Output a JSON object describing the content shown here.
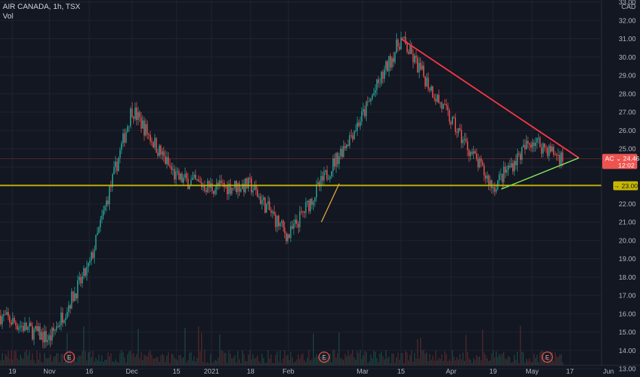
{
  "header": {
    "symbol_line": "AIR CANADA, 1h, TSX",
    "volume_label": "Vol"
  },
  "price_axis": {
    "currency": "CAD",
    "labels": [
      "33.00",
      "32.00",
      "31.00",
      "30.00",
      "29.00",
      "28.00",
      "27.00",
      "26.00",
      "25.00",
      "22.00",
      "21.00",
      "20.00",
      "19.00",
      "18.00",
      "17.00",
      "16.00",
      "15.00",
      "14.00",
      "13.00"
    ]
  },
  "time_axis": {
    "labels": [
      "19",
      "Nov",
      "16",
      "Dec",
      "15",
      "2021",
      "18",
      "Feb",
      "Mar",
      "15",
      "Apr",
      "19",
      "May",
      "17",
      "Jun"
    ]
  },
  "last_price_tag": {
    "symbol": "AC",
    "price": "24.46",
    "countdown": "12:02",
    "color": "#ef5350"
  },
  "level_tag": {
    "value": "23.00",
    "color": "#c7b800"
  },
  "earnings_markers": [
    "E",
    "E",
    "E"
  ],
  "colors": {
    "background": "#131722",
    "up_candle": "#26a69a",
    "down_candle": "#ef5350",
    "resistance_line": "#f23645",
    "support_line": "#7ee05a",
    "breakout_line": "#e0a83a",
    "horizontal_level": "#c7b800",
    "grid": "#1f2430"
  },
  "chart_data": {
    "type": "candlestick",
    "title": "AIR CANADA, 1h, TSX",
    "ylabel": "CAD",
    "ylim": [
      13,
      33
    ],
    "x": [
      "19",
      "Nov",
      "16",
      "Dec",
      "15",
      "2021",
      "18",
      "Feb",
      "Mar",
      "15",
      "Apr",
      "19",
      "May",
      "17",
      "Jun"
    ],
    "approx_close_path": [
      {
        "x": "19",
        "y": 15.9
      },
      {
        "x": "Nov",
        "y": 14.6
      },
      {
        "x": "16",
        "y": 18.6
      },
      {
        "x": "Dec",
        "y": 27.2
      },
      {
        "x": "15",
        "y": 23.4
      },
      {
        "x": "2021",
        "y": 22.9
      },
      {
        "x": "18",
        "y": 23.0
      },
      {
        "x": "Feb",
        "y": 20.2
      },
      {
        "x": "Mar",
        "y": 26.8
      },
      {
        "x": "15",
        "y": 31.0
      },
      {
        "x": "Apr",
        "y": 26.5
      },
      {
        "x": "19",
        "y": 22.9
      },
      {
        "x": "May",
        "y": 25.5
      },
      {
        "x": "17",
        "y": 24.46
      }
    ],
    "last_price": 24.46,
    "horizontal_level": 23.0,
    "trendlines": [
      {
        "name": "resistance",
        "from": {
          "x": "15",
          "y": 31.0
        },
        "to": {
          "x": "17",
          "y": 24.5
        }
      },
      {
        "name": "support",
        "from": {
          "x": "19",
          "y": 22.8
        },
        "to": {
          "x": "17",
          "y": 24.5
        }
      },
      {
        "name": "breakout",
        "from": {
          "x": "Feb",
          "y": 21.0
        },
        "to": {
          "x": "Feb",
          "y": 23.1
        }
      }
    ],
    "grid": true
  }
}
